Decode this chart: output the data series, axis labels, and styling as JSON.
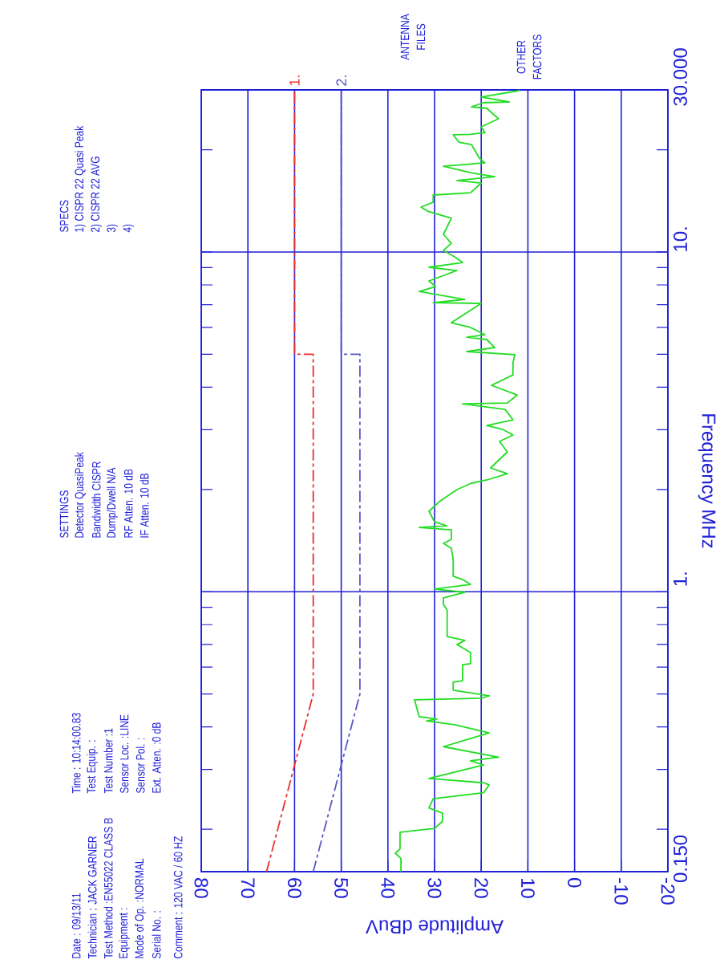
{
  "chart_data": {
    "type": "line",
    "xlabel": "Amplitude dBuV",
    "ylabel": "Frequency MHz",
    "xlim": [
      80,
      -20
    ],
    "ylim": [
      0.15,
      30
    ],
    "log": "y",
    "grid": true,
    "marker": "none",
    "xticks": [
      80,
      70,
      60,
      50,
      40,
      30,
      20,
      10,
      0,
      -10,
      -20
    ],
    "yticks": [
      {
        "value": 0.15,
        "label": "0.150"
      },
      {
        "value": 1,
        "label": "1."
      },
      {
        "value": 10,
        "label": "10."
      },
      {
        "value": 30,
        "label": "30.000"
      }
    ],
    "series": [
      {
        "name": "1.",
        "color": "#e83030",
        "line_style": "dashed",
        "x": [
          66,
          56,
          56,
          60,
          60
        ],
        "values": [
          0.15,
          0.5,
          5,
          5,
          30
        ]
      },
      {
        "name": "2.",
        "color": "#5858c4",
        "line_style": "dashed",
        "x": [
          56,
          46,
          46,
          50,
          50
        ],
        "values": [
          0.15,
          0.5,
          5,
          5,
          30
        ]
      },
      {
        "color": "#22dd22",
        "line_style": "solid",
        "values": [
          0.15,
          0.164,
          0.17,
          0.175,
          0.196,
          0.201,
          0.211,
          0.223,
          0.231,
          0.246,
          0.256,
          0.27,
          0.274,
          0.282,
          0.309,
          0.318,
          0.326,
          0.35,
          0.37,
          0.384,
          0.406,
          0.417,
          0.422,
          0.429,
          0.481,
          0.486,
          0.494,
          0.513,
          0.542,
          0.547,
          0.61,
          0.614,
          0.662,
          0.699,
          0.719,
          0.738,
          0.884,
          0.918,
          0.959,
          0.996,
          1.018,
          1.051,
          1.086,
          1.111,
          1.245,
          1.343,
          1.388,
          1.426,
          1.522,
          1.547,
          1.564,
          1.607,
          1.725,
          1.841,
          1.998,
          2.087,
          2.133,
          2.227,
          2.314,
          2.58,
          2.769,
          2.892,
          3.005,
          3.087,
          3.207,
          3.441,
          3.575,
          3.594,
          3.796,
          4.053,
          4.348,
          4.719,
          4.984,
          5.093,
          5.233,
          5.526,
          5.616,
          5.709,
          5.996,
          6.194,
          7.059,
          7.096,
          7.253,
          7.658,
          7.913,
          8.219,
          8.821,
          9.016,
          9.314,
          9.676,
          10.11,
          10.61,
          11.27,
          12.57,
          13.19,
          13.56,
          14.01,
          14.71,
          14.95,
          15.96,
          16.23,
          16.67,
          17.13,
          17.89,
          18.29,
          18.9,
          20.72,
          21.06,
          22.13,
          22.2,
          22.48,
          23.36,
          24.66,
          26.47,
          26.76,
          27.5,
          27.65,
          28.57,
          29.84,
          30
        ],
        "x": [
          37.2,
          37.2,
          38.4,
          37.4,
          37.4,
          30.0,
          28.3,
          28.3,
          31.2,
          30.3,
          19.5,
          18.3,
          19.5,
          31.2,
          19.5,
          22.3,
          16.3,
          28.1,
          22.3,
          18.3,
          25.7,
          31.7,
          29.5,
          33.3,
          34.3,
          20.0,
          18.3,
          26.0,
          26.0,
          24.0,
          24.0,
          22.3,
          22.3,
          25.2,
          23.5,
          27.3,
          27.3,
          28.1,
          28.1,
          23.5,
          30.0,
          22.3,
          24.0,
          26.0,
          26.0,
          26.4,
          28.1,
          26.4,
          26.4,
          33.3,
          27.4,
          30.0,
          31.2,
          29.0,
          25.2,
          22.1,
          18.8,
          14.4,
          18.0,
          14.4,
          16.1,
          13.2,
          15.4,
          18.8,
          13.2,
          14.9,
          24.0,
          14.4,
          12.3,
          17.8,
          13.2,
          13.2,
          12.8,
          23.1,
          17.1,
          18.8,
          23.1,
          19.2,
          22.3,
          26.4,
          20.0,
          30.3,
          23.5,
          33.3,
          29.8,
          31.2,
          25.2,
          31.2,
          24.0,
          25.7,
          28.1,
          26.4,
          28.1,
          26.4,
          31.5,
          32.9,
          30.3,
          30.3,
          22.3,
          20.0,
          25.2,
          17.1,
          22.3,
          28.1,
          19.2,
          20.4,
          22.1,
          24.8,
          26.0,
          22.3,
          19.2,
          20.0,
          16.3,
          18.8,
          22.1,
          19.5,
          14.0,
          20.0,
          12.0,
          11.8
        ]
      }
    ],
    "annotations": [
      "Date : 09/13/11",
      "Technician : JACK GARNER",
      "Test Method :EN55022 CLASS B",
      "Equipment :",
      "Mode of Op. :NORMAL",
      "Serial No. :",
      "Comment : 120 VAC / 60 HZ",
      "Time : 10:14:00.83",
      "Test Equip. :",
      "Test Number :1",
      "Sensor Loc. :LINE",
      "Sensor Pol. :",
      "Ext. Atten. :0 dB",
      "SETTINGS",
      "Detector QuasiPeak",
      "Bandwidth CISPR",
      "Dump/Dwell N/A",
      "RF Atten. 10 dB",
      "IF Atten. 10 dB",
      "SPECS",
      "1) CISPR 22 Quasi Peak",
      "2) CISPR 22 AVG",
      "3)",
      "4)",
      "ANTENNA FILES",
      "OTHER FACTORS"
    ]
  }
}
